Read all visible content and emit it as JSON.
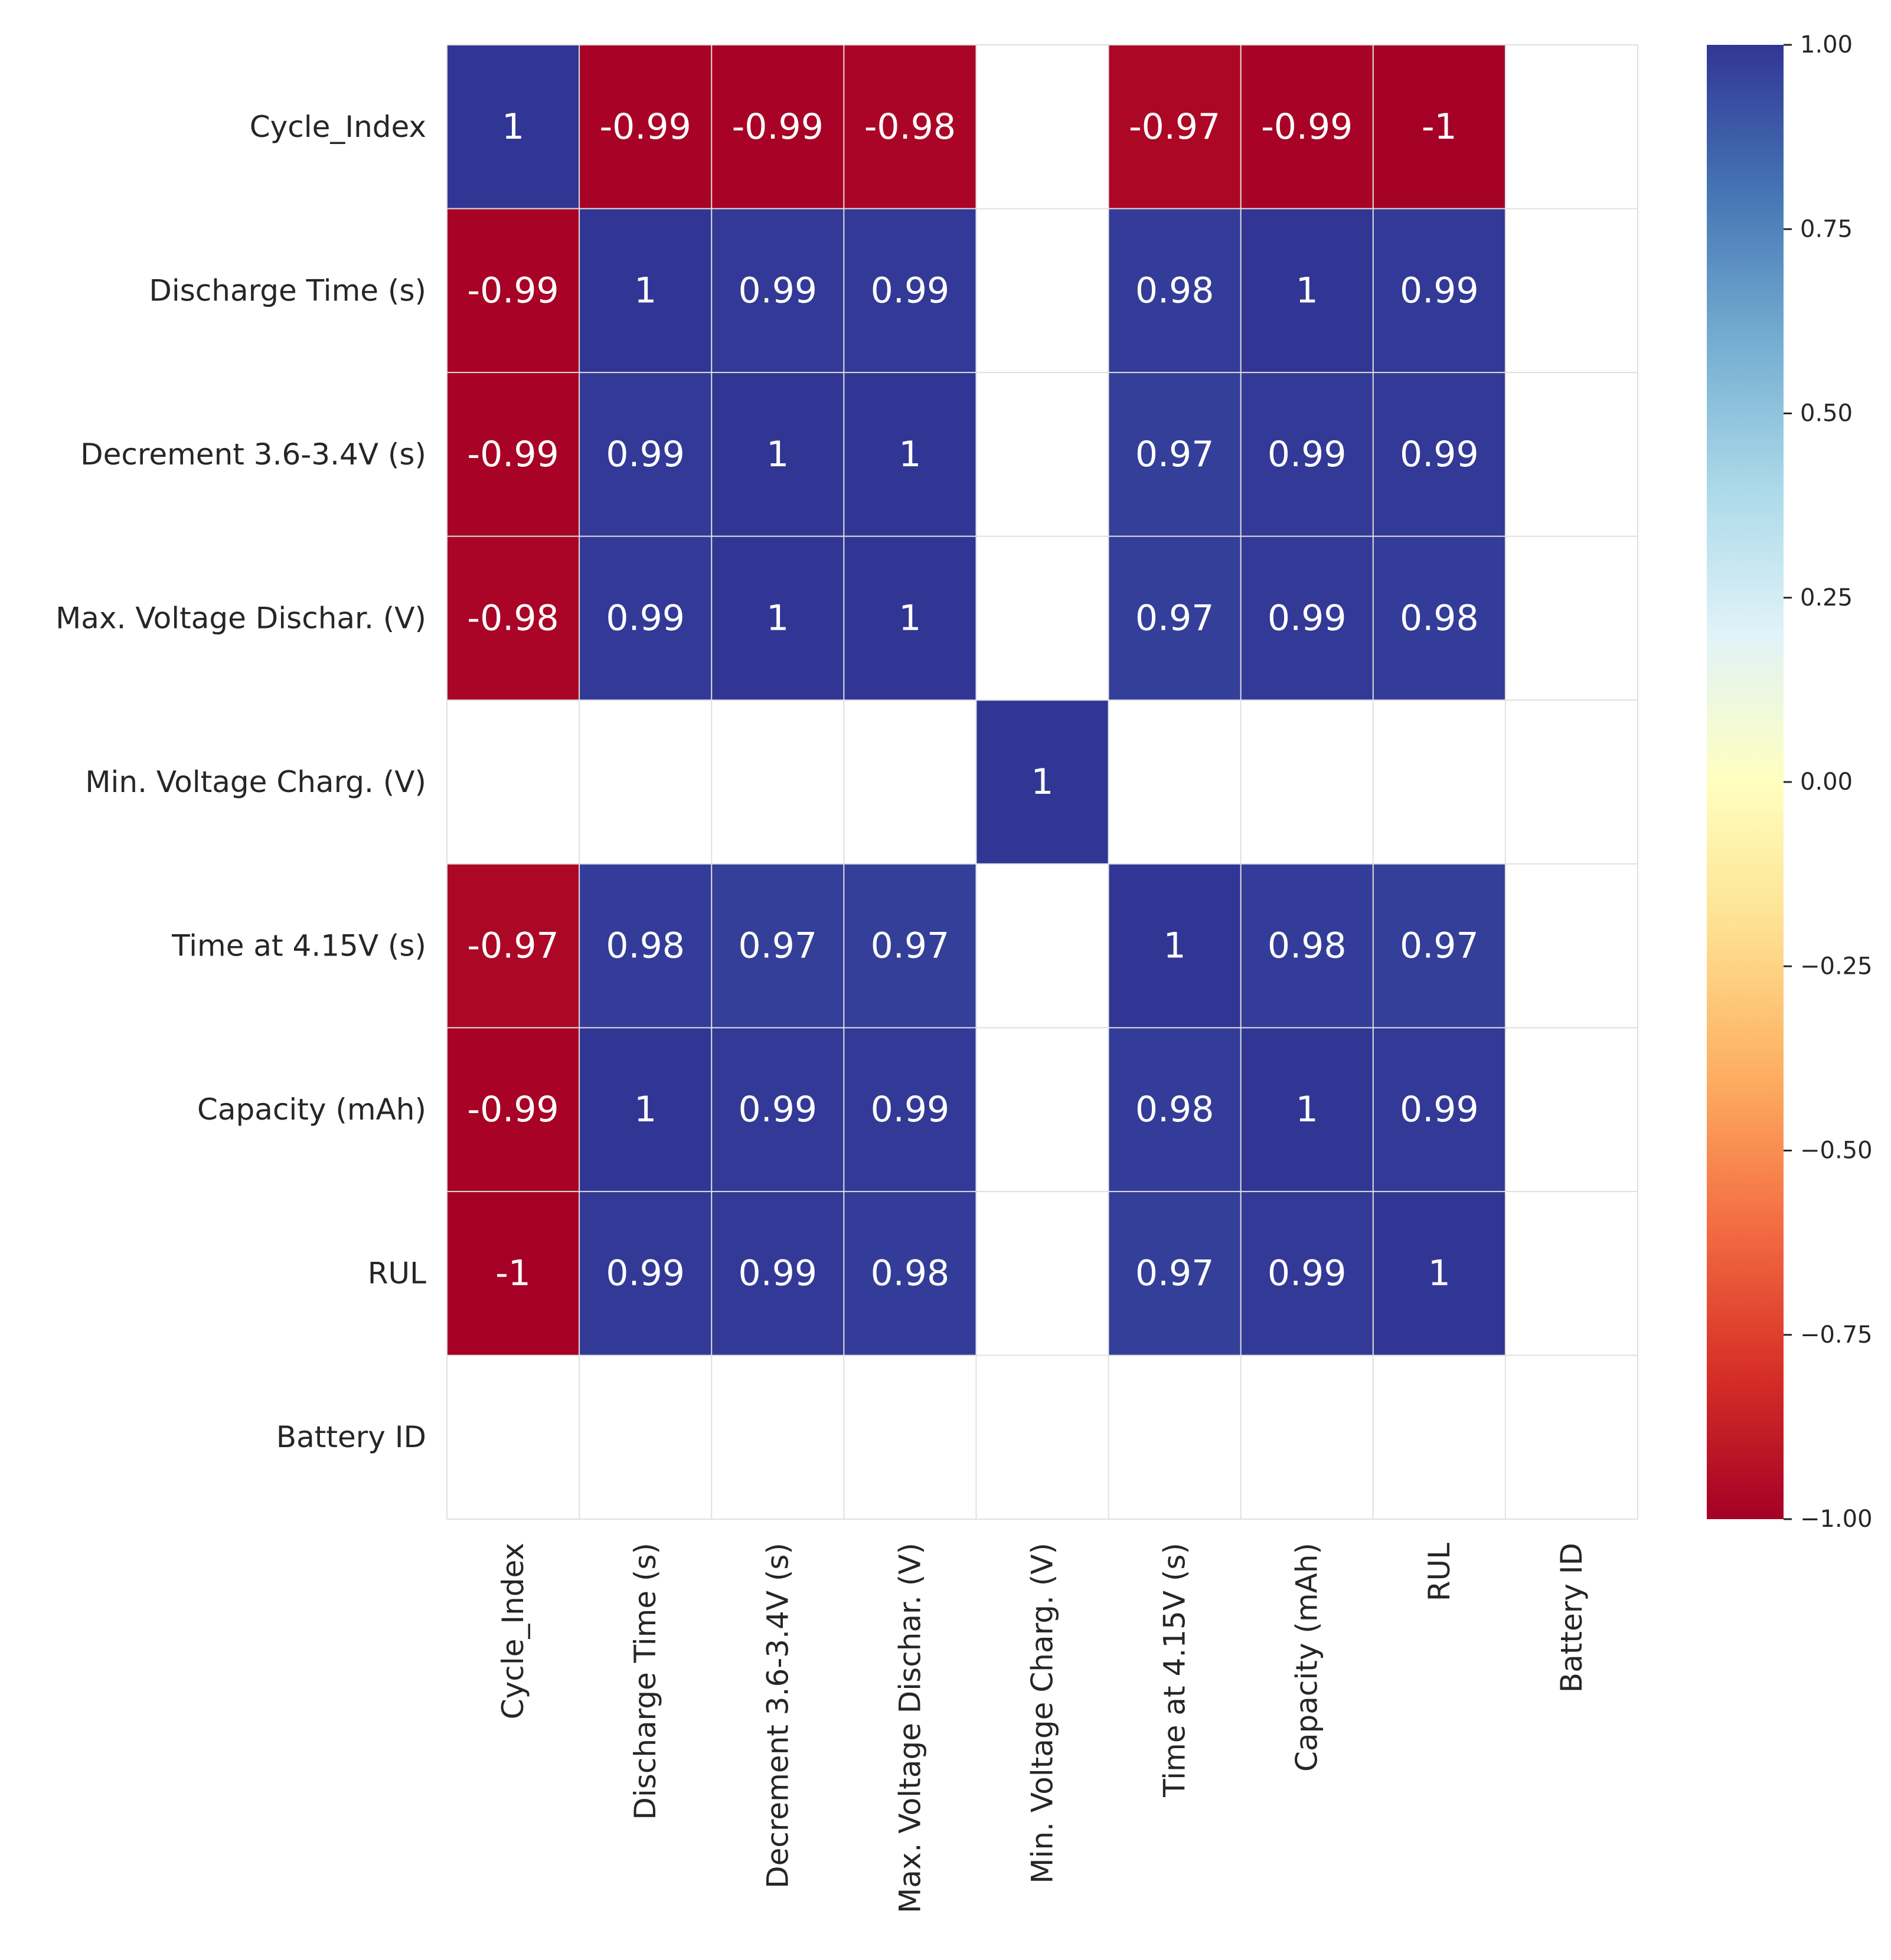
{
  "chart_data": {
    "type": "heatmap",
    "title": "",
    "labels": [
      "Cycle_Index",
      "Discharge Time (s)",
      "Decrement 3.6-3.4V (s)",
      "Max. Voltage Dischar. (V)",
      "Min. Voltage Charg. (V)",
      "Time at 4.15V (s)",
      "Capacity (mAh)",
      "RUL",
      "Battery ID"
    ],
    "values": [
      [
        1,
        -0.99,
        -0.99,
        -0.98,
        null,
        -0.97,
        -0.99,
        -1,
        null
      ],
      [
        -0.99,
        1,
        0.99,
        0.99,
        null,
        0.98,
        1,
        0.99,
        null
      ],
      [
        -0.99,
        0.99,
        1,
        1,
        null,
        0.97,
        0.99,
        0.99,
        null
      ],
      [
        -0.98,
        0.99,
        1,
        1,
        null,
        0.97,
        0.99,
        0.98,
        null
      ],
      [
        null,
        null,
        null,
        null,
        1,
        null,
        null,
        null,
        null
      ],
      [
        -0.97,
        0.98,
        0.97,
        0.97,
        null,
        1,
        0.98,
        0.97,
        null
      ],
      [
        -0.99,
        1,
        0.99,
        0.99,
        null,
        0.98,
        1,
        0.99,
        null
      ],
      [
        -1,
        0.99,
        0.99,
        0.98,
        null,
        0.97,
        0.99,
        1,
        null
      ],
      [
        null,
        null,
        null,
        null,
        null,
        null,
        null,
        null,
        null
      ]
    ],
    "annotations": [
      [
        "1",
        "-0.99",
        "-0.99",
        "-0.98",
        "",
        "-0.97",
        "-0.99",
        "-1",
        ""
      ],
      [
        "-0.99",
        "1",
        "0.99",
        "0.99",
        "",
        "0.98",
        "1",
        "0.99",
        ""
      ],
      [
        "-0.99",
        "0.99",
        "1",
        "1",
        "",
        "0.97",
        "0.99",
        "0.99",
        ""
      ],
      [
        "-0.98",
        "0.99",
        "1",
        "1",
        "",
        "0.97",
        "0.99",
        "0.98",
        ""
      ],
      [
        "",
        "",
        "",
        "",
        "1",
        "",
        "",
        "",
        ""
      ],
      [
        "-0.97",
        "0.98",
        "0.97",
        "0.97",
        "",
        "1",
        "0.98",
        "0.97",
        ""
      ],
      [
        "-0.99",
        "1",
        "0.99",
        "0.99",
        "",
        "0.98",
        "1",
        "0.99",
        ""
      ],
      [
        "-1",
        "0.99",
        "0.99",
        "0.98",
        "",
        "0.97",
        "0.99",
        "1",
        ""
      ],
      [
        "",
        "",
        "",
        "",
        "",
        "",
        "",
        "",
        ""
      ]
    ],
    "colormap": "RdYlBu",
    "vmin": -1,
    "vmax": 1,
    "colorbar": {
      "ticks": [
        1.0,
        0.75,
        0.5,
        0.25,
        0.0,
        -0.25,
        -0.5,
        -0.75,
        -1.0
      ],
      "tick_labels": [
        "1.00",
        "0.75",
        "0.50",
        "0.25",
        "0.00",
        "−0.25",
        "−0.50",
        "−0.75",
        "−1.00"
      ],
      "position": "right"
    },
    "colors": {
      "high": "#313695",
      "low": "#a50026",
      "mid": "#ffffbf",
      "missing": "#ffffff",
      "grid": "#e0e0e0",
      "annotation_text": "#ffffff"
    }
  }
}
